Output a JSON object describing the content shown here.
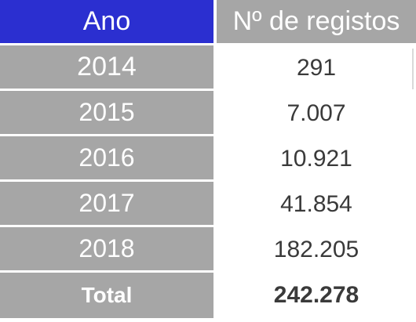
{
  "table": {
    "headers": {
      "year": "Ano",
      "count": "Nº de registos"
    },
    "rows": [
      {
        "year": "2014",
        "count": "291"
      },
      {
        "year": "2015",
        "count": "7.007"
      },
      {
        "year": "2016",
        "count": "10.921"
      },
      {
        "year": "2017",
        "count": "41.854"
      },
      {
        "year": "2018",
        "count": "182.205"
      }
    ],
    "total": {
      "label": "Total",
      "count": "242.278"
    }
  },
  "colors": {
    "header_year_bg": "#2b2fd0",
    "gray_bg": "#a6a6a6",
    "text_dark": "#3a3a3a"
  }
}
